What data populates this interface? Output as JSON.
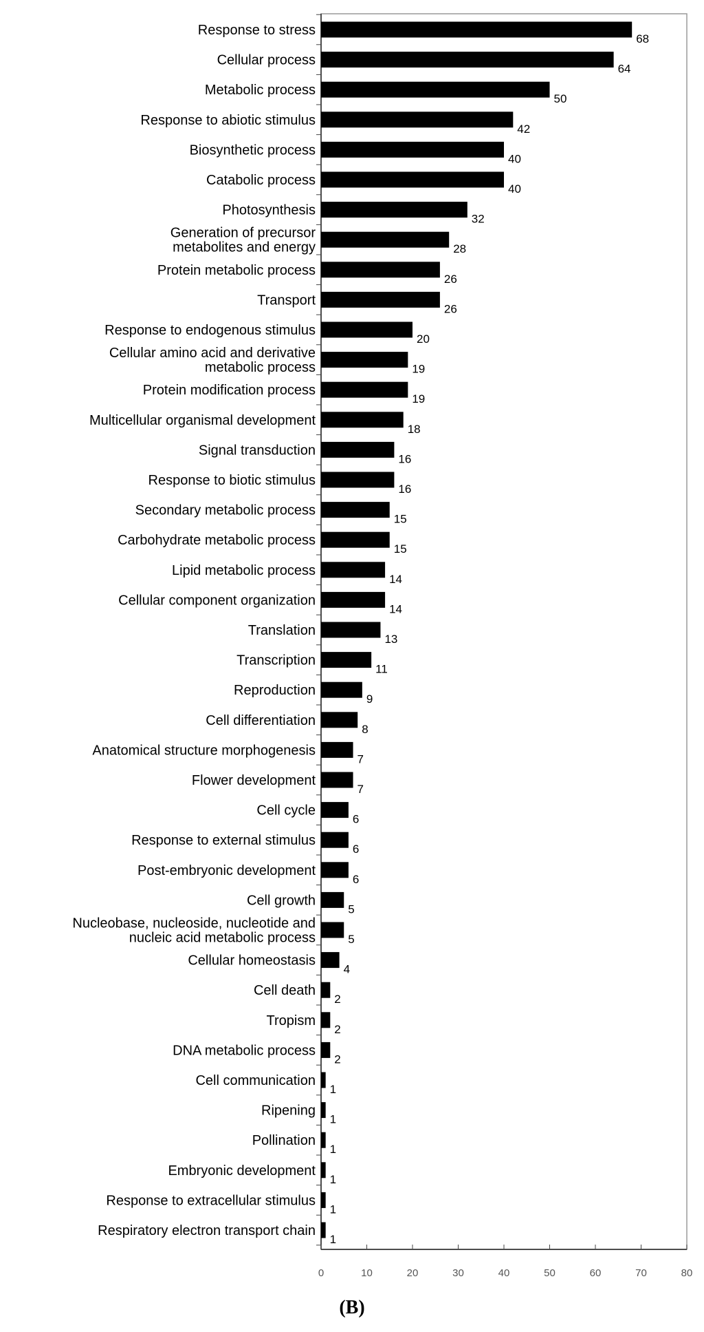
{
  "chart_data": {
    "type": "bar",
    "orientation": "horizontal",
    "panel_label": "(B)",
    "categories": [
      "Response to stress",
      "Cellular process",
      "Metabolic process",
      "Response to abiotic stimulus",
      "Biosynthetic process",
      "Catabolic process",
      "Photosynthesis",
      "Generation of precursor metabolites and energy",
      "Protein metabolic process",
      "Transport",
      "Response to endogenous stimulus",
      "Cellular amino acid and derivative metabolic process",
      "Protein modification process",
      "Multicellular organismal development",
      "Signal transduction",
      "Response to biotic stimulus",
      "Secondary metabolic process",
      "Carbohydrate metabolic process",
      "Lipid metabolic process",
      "Cellular component organization",
      "Translation",
      "Transcription",
      "Reproduction",
      "Cell differentiation",
      "Anatomical structure morphogenesis",
      "Flower development",
      "Cell cycle",
      "Response to external stimulus",
      "Post-embryonic development",
      "Cell growth",
      "Nucleobase, nucleoside, nucleotide and nucleic acid metabolic process",
      "Cellular homeostasis",
      "Cell death",
      "Tropism",
      "DNA metabolic process",
      "Cell communication",
      "Ripening",
      "Pollination",
      "Embryonic development",
      "Response to extracellular stimulus",
      "Respiratory electron transport chain"
    ],
    "label_lines": [
      [
        "Response to stress"
      ],
      [
        "Cellular process"
      ],
      [
        "Metabolic process"
      ],
      [
        "Response to abiotic stimulus"
      ],
      [
        "Biosynthetic process"
      ],
      [
        "Catabolic process"
      ],
      [
        "Photosynthesis"
      ],
      [
        "Generation of precursor",
        "metabolites and energy"
      ],
      [
        "Protein metabolic process"
      ],
      [
        "Transport"
      ],
      [
        "Response to endogenous stimulus"
      ],
      [
        "Cellular amino acid and derivative",
        "metabolic process"
      ],
      [
        "Protein modification process"
      ],
      [
        "Multicellular organismal development"
      ],
      [
        "Signal transduction"
      ],
      [
        "Response to biotic stimulus"
      ],
      [
        "Secondary metabolic process"
      ],
      [
        "Carbohydrate metabolic process"
      ],
      [
        "Lipid metabolic process"
      ],
      [
        "Cellular component organization"
      ],
      [
        "Translation"
      ],
      [
        "Transcription"
      ],
      [
        "Reproduction"
      ],
      [
        "Cell differentiation"
      ],
      [
        "Anatomical structure morphogenesis"
      ],
      [
        "Flower development"
      ],
      [
        "Cell cycle"
      ],
      [
        "Response to external stimulus"
      ],
      [
        "Post-embryonic development"
      ],
      [
        "Cell growth"
      ],
      [
        "Nucleobase, nucleoside, nucleotide and",
        "nucleic acid metabolic process"
      ],
      [
        "Cellular homeostasis"
      ],
      [
        "Cell death"
      ],
      [
        "Tropism"
      ],
      [
        "DNA metabolic process"
      ],
      [
        "Cell communication"
      ],
      [
        "Ripening"
      ],
      [
        "Pollination"
      ],
      [
        "Embryonic development"
      ],
      [
        "Response to extracellular stimulus"
      ],
      [
        "Respiratory electron transport chain"
      ]
    ],
    "values": [
      68,
      64,
      50,
      42,
      40,
      40,
      32,
      28,
      26,
      26,
      20,
      19,
      19,
      18,
      16,
      16,
      15,
      15,
      14,
      14,
      13,
      11,
      9,
      8,
      7,
      7,
      6,
      6,
      6,
      5,
      5,
      4,
      2,
      2,
      2,
      1,
      1,
      1,
      1,
      1,
      1
    ],
    "xlim": [
      0,
      80
    ],
    "xticks": [
      0,
      10,
      20,
      30,
      40,
      50,
      60,
      70,
      80
    ],
    "bar_color": "#000000",
    "grid": false,
    "legend": false
  }
}
